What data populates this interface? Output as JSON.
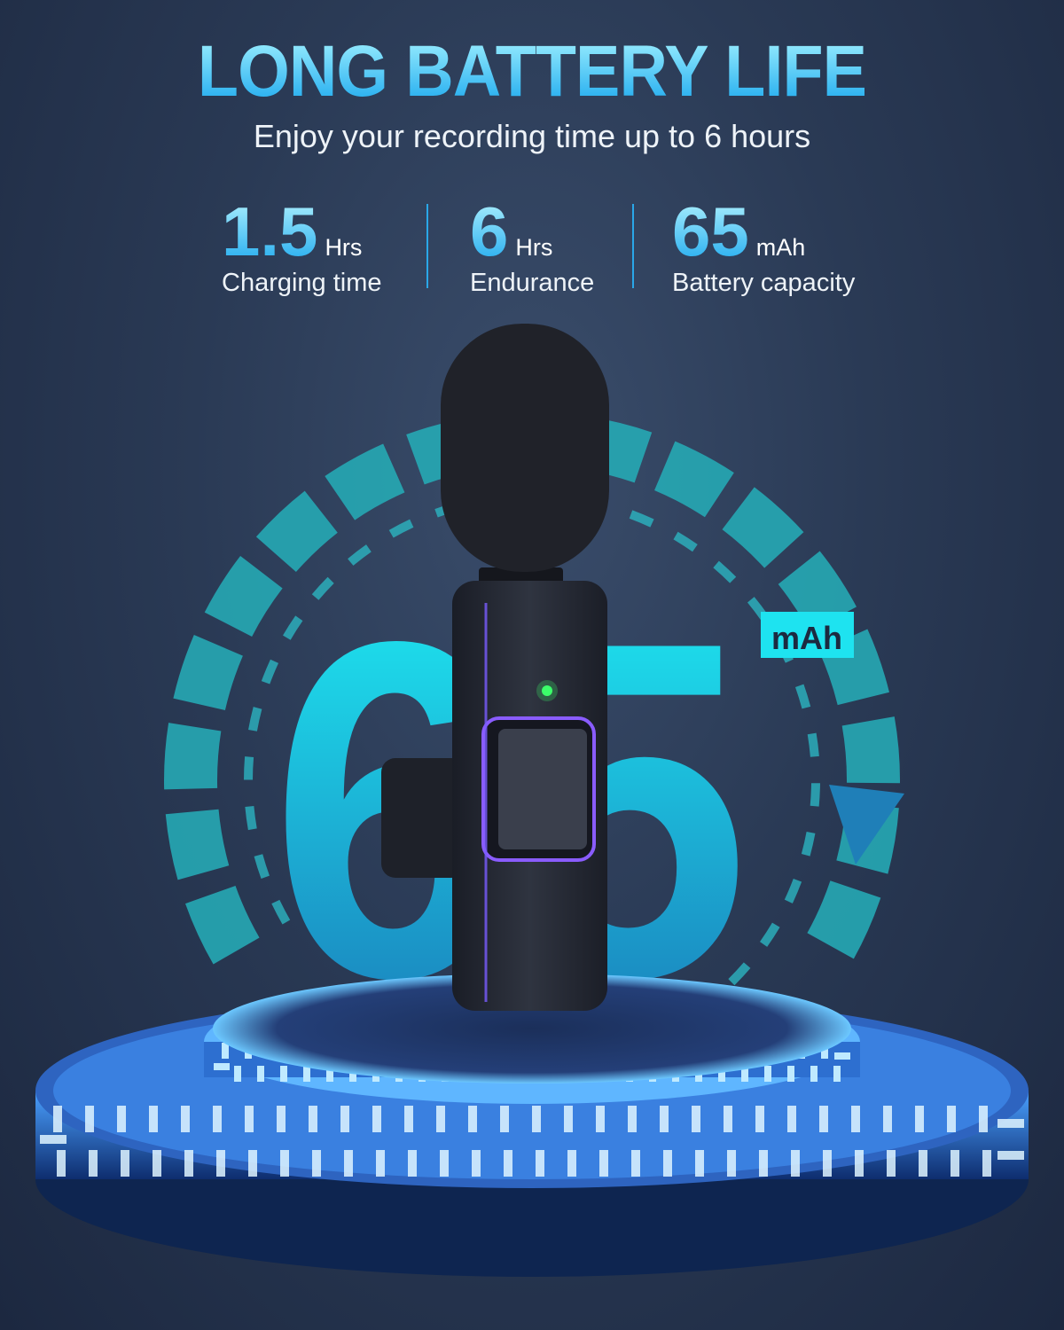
{
  "header": {
    "title": "LONG BATTERY LIFE",
    "subtitle": "Enjoy your recording time up to 6 hours"
  },
  "stats": [
    {
      "value": "1.5",
      "unit": "Hrs",
      "label": "Charging time"
    },
    {
      "value": "6",
      "unit": "Hrs",
      "label": "Endurance"
    },
    {
      "value": "65",
      "unit": "mAh",
      "label": "Battery capacity"
    }
  ],
  "graphic": {
    "big_number": "65",
    "big_unit": "mAh",
    "accent_color": "#1ee3f0",
    "led_color": "#3cff6a",
    "glow_color": "#8a5cff"
  }
}
